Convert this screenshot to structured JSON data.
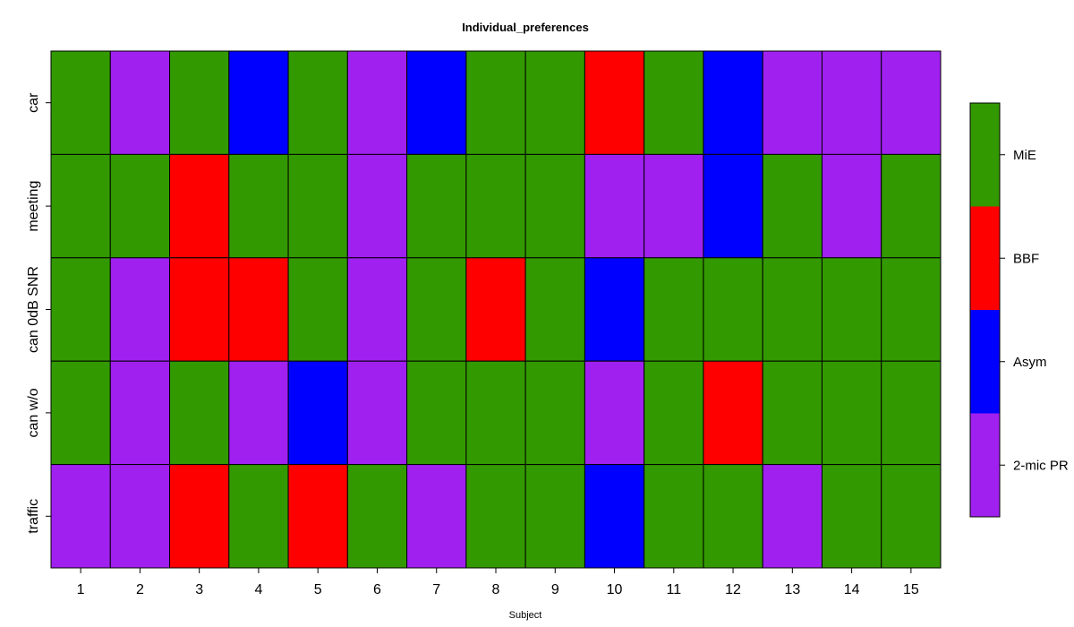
{
  "chart_data": {
    "type": "heatmap",
    "title": "Individual_preferences",
    "xlabel": "Subject",
    "ylabel": "",
    "x_categories": [
      "1",
      "2",
      "3",
      "4",
      "5",
      "6",
      "7",
      "8",
      "9",
      "10",
      "11",
      "12",
      "13",
      "14",
      "15"
    ],
    "y_categories": [
      "car",
      "meeting",
      "can 0dB SNR",
      "can w/o",
      "traffic"
    ],
    "values": [
      [
        "MiE",
        "2-mic PR",
        "MiE",
        "Asym",
        "MiE",
        "2-mic PR",
        "Asym",
        "MiE",
        "MiE",
        "BBF",
        "MiE",
        "Asym",
        "2-mic PR",
        "2-mic PR",
        "2-mic PR"
      ],
      [
        "MiE",
        "MiE",
        "BBF",
        "MiE",
        "MiE",
        "2-mic PR",
        "MiE",
        "MiE",
        "MiE",
        "2-mic PR",
        "2-mic PR",
        "Asym",
        "MiE",
        "2-mic PR",
        "MiE"
      ],
      [
        "MiE",
        "2-mic PR",
        "BBF",
        "BBF",
        "MiE",
        "2-mic PR",
        "MiE",
        "BBF",
        "MiE",
        "Asym",
        "MiE",
        "MiE",
        "MiE",
        "MiE",
        "MiE"
      ],
      [
        "MiE",
        "2-mic PR",
        "MiE",
        "2-mic PR",
        "Asym",
        "2-mic PR",
        "MiE",
        "MiE",
        "MiE",
        "2-mic PR",
        "MiE",
        "BBF",
        "MiE",
        "MiE",
        "MiE"
      ],
      [
        "2-mic PR",
        "2-mic PR",
        "BBF",
        "MiE",
        "BBF",
        "MiE",
        "2-mic PR",
        "MiE",
        "MiE",
        "Asym",
        "MiE",
        "MiE",
        "2-mic PR",
        "MiE",
        "MiE"
      ]
    ],
    "legend": {
      "placement": "right",
      "entries": [
        "MiE",
        "BBF",
        "Asym",
        "2-mic PR"
      ]
    },
    "colors": {
      "MiE": "#339900",
      "BBF": "#ff0000",
      "Asym": "#0000ff",
      "2-mic PR": "#a020f0"
    }
  }
}
